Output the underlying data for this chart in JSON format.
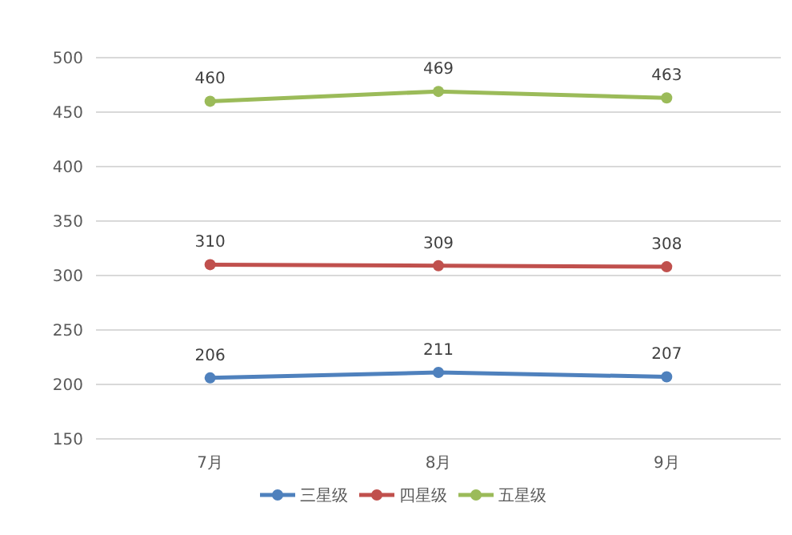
{
  "chart_data": {
    "type": "line",
    "categories": [
      "7月",
      "8月",
      "9月"
    ],
    "series": [
      {
        "name": "三星级",
        "color": "#4f81bd",
        "values": [
          206,
          211,
          207
        ]
      },
      {
        "name": "四星级",
        "color": "#c0504d",
        "values": [
          310,
          309,
          308
        ]
      },
      {
        "name": "五星级",
        "color": "#9bbb59",
        "values": [
          460,
          469,
          463
        ]
      }
    ],
    "ylim": [
      150,
      500
    ],
    "yticks": [
      150,
      200,
      250,
      300,
      350,
      400,
      450,
      500
    ],
    "grid": "y",
    "legend": "bottom",
    "marker": "circle",
    "data_labels": true
  }
}
